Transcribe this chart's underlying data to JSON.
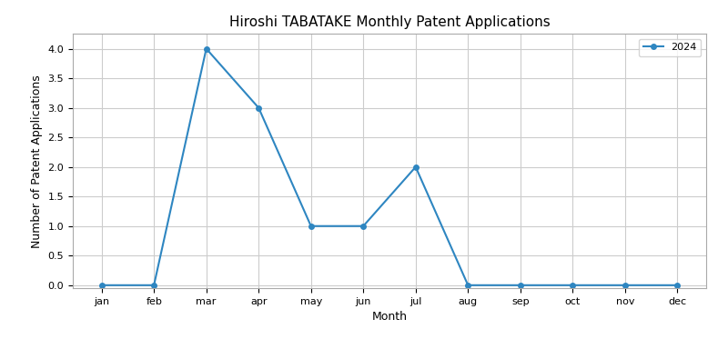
{
  "title": "Hiroshi TABATAKE Monthly Patent Applications",
  "xlabel": "Month",
  "ylabel": "Number of Patent Applications",
  "months": [
    "jan",
    "feb",
    "mar",
    "apr",
    "may",
    "jun",
    "jul",
    "aug",
    "sep",
    "oct",
    "nov",
    "dec"
  ],
  "values_2024": [
    0,
    0,
    4,
    3,
    1,
    1,
    2,
    0,
    0,
    0,
    0,
    0
  ],
  "legend_label": "2024",
  "line_color": "#2e86c1",
  "marker": "o",
  "marker_size": 4,
  "linewidth": 1.5,
  "ylim": [
    -0.05,
    4.25
  ],
  "title_fontsize": 11,
  "label_fontsize": 9,
  "tick_fontsize": 8,
  "grid_color": "#cccccc",
  "background_color": "#ffffff",
  "figure_facecolor": "#ffffff"
}
